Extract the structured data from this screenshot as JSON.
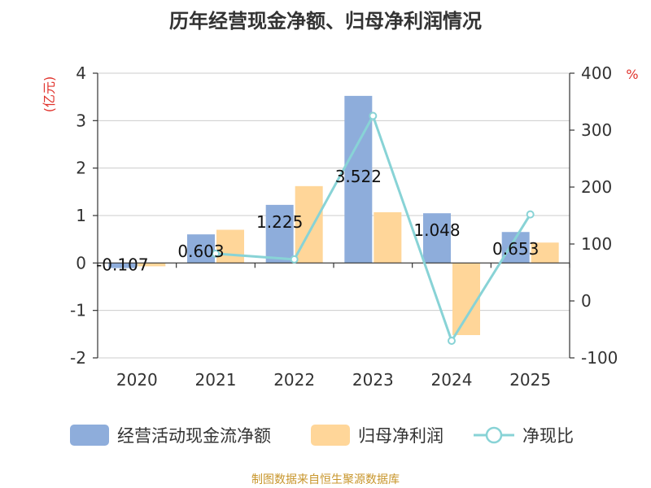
{
  "chart_data": {
    "type": "bar+line",
    "title": "历年经营现金净额、归母净利润情况",
    "categories": [
      "2020",
      "2021",
      "2022",
      "2023",
      "2024",
      "2025"
    ],
    "left_axis": {
      "unit": "(亿元)",
      "ticks": [
        "4",
        "3",
        "2",
        "1",
        "0",
        "-1",
        "-2"
      ],
      "ylim": [
        -2,
        4
      ]
    },
    "right_axis": {
      "unit": "%",
      "ticks": [
        "400",
        "300",
        "200",
        "100",
        "0",
        "-100"
      ],
      "ylim": [
        -100,
        400
      ]
    },
    "series": [
      {
        "name": "经营活动现金流净额",
        "type": "bar",
        "axis": "left",
        "values": [
          -0.107,
          0.603,
          1.225,
          3.522,
          1.048,
          0.653
        ],
        "labels": [
          "-0.107",
          "0.603",
          "1.225",
          "3.522",
          "1.048",
          "0.653"
        ]
      },
      {
        "name": "归母净利润",
        "type": "bar",
        "axis": "left",
        "values": [
          -0.07,
          0.7,
          1.62,
          1.07,
          -1.52,
          0.43
        ]
      },
      {
        "name": "净现比",
        "type": "line",
        "axis": "right",
        "values": [
          null,
          83,
          73,
          325,
          -70,
          152
        ]
      }
    ],
    "source": "制图数据来自恒生聚源数据库"
  },
  "colors": {
    "bar1": "#8eaddb",
    "bar2": "#ffd699",
    "line": "#88d3d6",
    "unit": "#e0322b",
    "source": "#c8962c"
  }
}
